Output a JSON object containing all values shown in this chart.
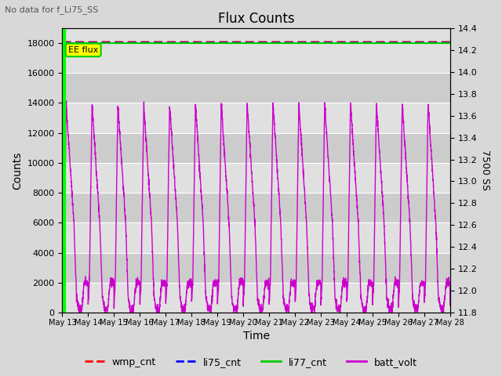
{
  "title": "Flux Counts",
  "subtitle": "No data for f_Li75_SS",
  "xlabel": "Time",
  "ylabel_left": "Counts",
  "ylabel_right": "7500 SS",
  "ylim_left": [
    0,
    19000
  ],
  "ylim_right": [
    11.8,
    14.4
  ],
  "yticks_left": [
    0,
    2000,
    4000,
    6000,
    8000,
    10000,
    12000,
    14000,
    16000,
    18000
  ],
  "yticks_right": [
    11.8,
    12.0,
    12.2,
    12.4,
    12.6,
    12.8,
    13.0,
    13.2,
    13.4,
    13.6,
    13.8,
    14.0,
    14.2,
    14.4
  ],
  "ee_flux_label": "EE flux",
  "colors": {
    "wmp_cnt": "#ff0000",
    "li75_cnt": "#0000ff",
    "li77_cnt": "#00cc00",
    "batt_volt": "#cc00cc",
    "ee_flux_line": "#00ff00",
    "ee_flux_box_bg": "#ffff00",
    "ee_flux_box_border": "#00cc00",
    "background_light": "#e0e0e0",
    "background_dark": "#cccccc",
    "grid": "#ffffff"
  },
  "legend_entries": [
    "wmp_cnt",
    "li75_cnt",
    "li77_cnt",
    "batt_volt"
  ],
  "xtick_labels": [
    "May 13",
    "May 14",
    "May 15",
    "May 16",
    "May 17",
    "May 18",
    "May 19",
    "May 20",
    "May 21",
    "May 22",
    "May 23",
    "May 24",
    "May 25",
    "May 26",
    "May 27",
    "May 28"
  ],
  "n_days": 15,
  "fig_width": 6.4,
  "fig_height": 4.8,
  "dpi": 100
}
